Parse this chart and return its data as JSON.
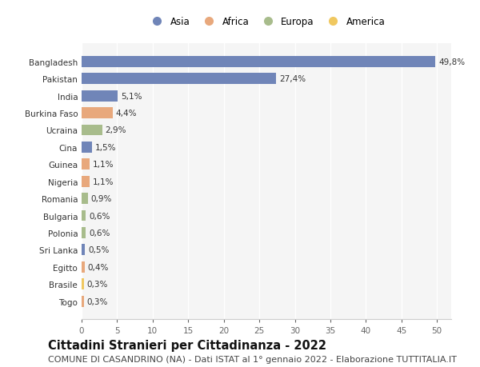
{
  "countries": [
    "Bangladesh",
    "Pakistan",
    "India",
    "Burkina Faso",
    "Ucraina",
    "Cina",
    "Guinea",
    "Nigeria",
    "Romania",
    "Bulgaria",
    "Polonia",
    "Sri Lanka",
    "Egitto",
    "Brasile",
    "Togo"
  ],
  "values": [
    49.8,
    27.4,
    5.1,
    4.4,
    2.9,
    1.5,
    1.1,
    1.1,
    0.9,
    0.6,
    0.6,
    0.5,
    0.4,
    0.3,
    0.3
  ],
  "labels": [
    "49,8%",
    "27,4%",
    "5,1%",
    "4,4%",
    "2,9%",
    "1,5%",
    "1,1%",
    "1,1%",
    "0,9%",
    "0,6%",
    "0,6%",
    "0,5%",
    "0,4%",
    "0,3%",
    "0,3%"
  ],
  "continents": [
    "Asia",
    "Asia",
    "Asia",
    "Africa",
    "Europa",
    "Asia",
    "Africa",
    "Africa",
    "Europa",
    "Europa",
    "Europa",
    "Asia",
    "Africa",
    "America",
    "Africa"
  ],
  "continent_colors": {
    "Asia": "#7085b8",
    "Africa": "#e8a87c",
    "Europa": "#a8bc8c",
    "America": "#f0c860"
  },
  "legend_order": [
    "Asia",
    "Africa",
    "Europa",
    "America"
  ],
  "title": "Cittadini Stranieri per Cittadinanza - 2022",
  "subtitle": "COMUNE DI CASANDRINO (NA) - Dati ISTAT al 1° gennaio 2022 - Elaborazione TUTTITALIA.IT",
  "xlim": [
    0,
    52
  ],
  "xticks": [
    0,
    5,
    10,
    15,
    20,
    25,
    30,
    35,
    40,
    45,
    50
  ],
  "background_color": "#ffffff",
  "plot_bg_color": "#f5f5f5",
  "grid_color": "#ffffff",
  "bar_height": 0.65,
  "title_fontsize": 10.5,
  "subtitle_fontsize": 8,
  "label_fontsize": 7.5,
  "tick_fontsize": 7.5,
  "legend_fontsize": 8.5
}
